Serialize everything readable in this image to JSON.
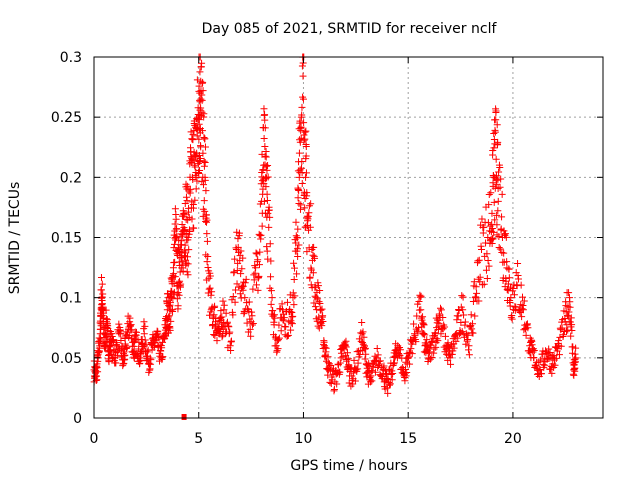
{
  "colors": {
    "series": "#ff0000",
    "axis": "#000000",
    "grid": "#a0a0a0",
    "background": "#ffffff"
  },
  "chart_data": {
    "type": "scatter",
    "title": "Day 085 of 2021, SRMTID for receiver nclf",
    "xlabel": "GPS time / hours",
    "ylabel": "SRMTID / TECUs",
    "xlim": [
      0,
      24.3
    ],
    "ylim": [
      0,
      0.3
    ],
    "grid": true,
    "marker": "+",
    "x_ticks": [
      0,
      5,
      10,
      15,
      20
    ],
    "y_ticks": [
      0,
      0.05,
      0.1,
      0.15,
      0.2,
      0.25,
      0.3
    ],
    "x_tick_labels": [
      "0",
      "5",
      "10",
      "15",
      "20"
    ],
    "y_tick_labels": [
      "0",
      "0.05",
      "0.1",
      "0.15",
      "0.2",
      "0.25",
      "0.3"
    ],
    "data_extent_hours": [
      0,
      23
    ],
    "series": [
      {
        "name": "SRMTID",
        "note": "dense scatter of several thousand points; values below are representative samples read from the plot",
        "points": [
          [
            0.0,
            0.04
          ],
          [
            0.1,
            0.035
          ],
          [
            0.2,
            0.05
          ],
          [
            0.3,
            0.07
          ],
          [
            0.35,
            0.1
          ],
          [
            0.4,
            0.095
          ],
          [
            0.5,
            0.06
          ],
          [
            0.6,
            0.08
          ],
          [
            0.7,
            0.055
          ],
          [
            0.8,
            0.065
          ],
          [
            1.0,
            0.05
          ],
          [
            1.2,
            0.07
          ],
          [
            1.4,
            0.045
          ],
          [
            1.5,
            0.06
          ],
          [
            1.7,
            0.08
          ],
          [
            1.9,
            0.055
          ],
          [
            2.0,
            0.065
          ],
          [
            2.2,
            0.05
          ],
          [
            2.4,
            0.07
          ],
          [
            2.6,
            0.045
          ],
          [
            2.8,
            0.06
          ],
          [
            3.0,
            0.065
          ],
          [
            3.2,
            0.05
          ],
          [
            3.4,
            0.07
          ],
          [
            3.5,
            0.09
          ],
          [
            3.6,
            0.085
          ],
          [
            3.7,
            0.1
          ],
          [
            3.8,
            0.12
          ],
          [
            3.9,
            0.15
          ],
          [
            4.0,
            0.11
          ],
          [
            4.1,
            0.14
          ],
          [
            4.2,
            0.13
          ],
          [
            4.3,
            0.17
          ],
          [
            4.4,
            0.165
          ],
          [
            4.5,
            0.15
          ],
          [
            4.6,
            0.19
          ],
          [
            4.7,
            0.2
          ],
          [
            4.8,
            0.21
          ],
          [
            4.9,
            0.22
          ],
          [
            5.0,
            0.25
          ],
          [
            5.05,
            0.27
          ],
          [
            5.1,
            0.265
          ],
          [
            5.2,
            0.22
          ],
          [
            5.3,
            0.2
          ],
          [
            5.4,
            0.13
          ],
          [
            5.6,
            0.09
          ],
          [
            5.8,
            0.08
          ],
          [
            6.0,
            0.07
          ],
          [
            6.2,
            0.09
          ],
          [
            6.5,
            0.06
          ],
          [
            6.8,
            0.14
          ],
          [
            7.0,
            0.12
          ],
          [
            7.2,
            0.1
          ],
          [
            7.5,
            0.08
          ],
          [
            7.8,
            0.13
          ],
          [
            8.0,
            0.18
          ],
          [
            8.1,
            0.21
          ],
          [
            8.2,
            0.2
          ],
          [
            8.3,
            0.17
          ],
          [
            8.5,
            0.1
          ],
          [
            8.7,
            0.06
          ],
          [
            9.0,
            0.09
          ],
          [
            9.3,
            0.08
          ],
          [
            9.5,
            0.1
          ],
          [
            9.7,
            0.15
          ],
          [
            9.8,
            0.2
          ],
          [
            9.9,
            0.25
          ],
          [
            10.0,
            0.265
          ],
          [
            10.1,
            0.2
          ],
          [
            10.2,
            0.16
          ],
          [
            10.4,
            0.14
          ],
          [
            10.6,
            0.1
          ],
          [
            10.8,
            0.09
          ],
          [
            11.0,
            0.06
          ],
          [
            11.2,
            0.04
          ],
          [
            11.5,
            0.03
          ],
          [
            11.8,
            0.05
          ],
          [
            12.0,
            0.06
          ],
          [
            12.2,
            0.035
          ],
          [
            12.5,
            0.04
          ],
          [
            12.8,
            0.07
          ],
          [
            13.0,
            0.045
          ],
          [
            13.2,
            0.03
          ],
          [
            13.5,
            0.05
          ],
          [
            13.8,
            0.04
          ],
          [
            14.0,
            0.025
          ],
          [
            14.3,
            0.045
          ],
          [
            14.5,
            0.06
          ],
          [
            14.8,
            0.035
          ],
          [
            15.0,
            0.05
          ],
          [
            15.3,
            0.07
          ],
          [
            15.6,
            0.09
          ],
          [
            15.8,
            0.06
          ],
          [
            16.0,
            0.05
          ],
          [
            16.3,
            0.07
          ],
          [
            16.5,
            0.085
          ],
          [
            16.8,
            0.06
          ],
          [
            17.0,
            0.05
          ],
          [
            17.3,
            0.07
          ],
          [
            17.6,
            0.09
          ],
          [
            17.9,
            0.06
          ],
          [
            18.2,
            0.1
          ],
          [
            18.5,
            0.14
          ],
          [
            18.8,
            0.15
          ],
          [
            19.0,
            0.17
          ],
          [
            19.1,
            0.2
          ],
          [
            19.2,
            0.215
          ],
          [
            19.3,
            0.18
          ],
          [
            19.5,
            0.15
          ],
          [
            19.7,
            0.13
          ],
          [
            19.9,
            0.1
          ],
          [
            20.2,
            0.11
          ],
          [
            20.5,
            0.09
          ],
          [
            20.8,
            0.06
          ],
          [
            21.0,
            0.05
          ],
          [
            21.3,
            0.04
          ],
          [
            21.6,
            0.055
          ],
          [
            21.9,
            0.045
          ],
          [
            22.2,
            0.06
          ],
          [
            22.5,
            0.08
          ],
          [
            22.7,
            0.1
          ],
          [
            22.9,
            0.04
          ],
          [
            23.0,
            0.05
          ]
        ]
      }
    ],
    "outlier_mark": {
      "x": 4.3,
      "y": 0.0
    }
  }
}
